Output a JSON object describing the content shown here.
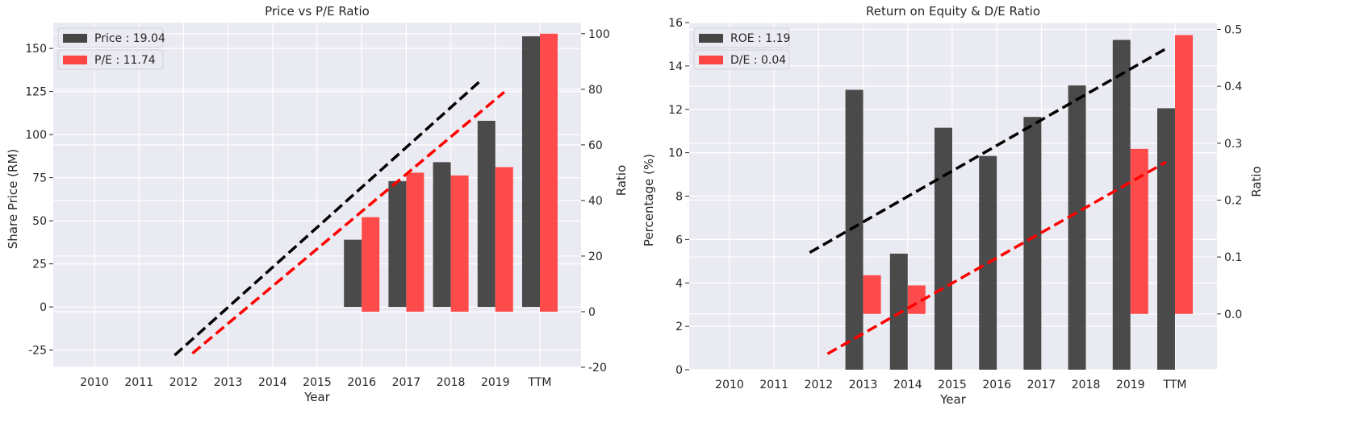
{
  "chart_data": [
    {
      "type": "bar",
      "title": "Price vs P/E Ratio",
      "xlabel": "Year",
      "ylabel": "Share Price (RM)",
      "ylabel_right": "Ratio",
      "categories": [
        "2010",
        "2011",
        "2012",
        "2013",
        "2014",
        "2015",
        "2016",
        "2017",
        "2018",
        "2019",
        "TTM"
      ],
      "ylim": [
        -35,
        165
      ],
      "yticks": [
        -25,
        0,
        25,
        50,
        75,
        100,
        125,
        150
      ],
      "ylim_right": [
        -20,
        104
      ],
      "yticks_right": [
        -20,
        0,
        20,
        40,
        60,
        80,
        100
      ],
      "legend_position": "top-left",
      "series": [
        {
          "name": "Price : 19.04",
          "axis": "left",
          "color": "#333333",
          "values": [
            null,
            null,
            null,
            null,
            null,
            null,
            39,
            73,
            84,
            108,
            157
          ]
        },
        {
          "name": "P/E : 11.74",
          "axis": "right",
          "color": "#ff3333",
          "values": [
            null,
            null,
            null,
            null,
            null,
            null,
            34,
            50,
            49,
            52,
            100
          ]
        }
      ],
      "trendlines": [
        {
          "axis": "left",
          "color": "#000000",
          "from": [
            1.8,
            -28
          ],
          "to": [
            8.7,
            132
          ]
        },
        {
          "axis": "right",
          "color": "#ff0000",
          "from": [
            2.2,
            -15
          ],
          "to": [
            9.2,
            79
          ]
        }
      ],
      "grid": true
    },
    {
      "type": "bar",
      "title": "Return on Equity & D/E Ratio",
      "xlabel": "Year",
      "ylabel": "Percentage (%)",
      "ylabel_right": "Ratio",
      "categories": [
        "2010",
        "2011",
        "2012",
        "2013",
        "2014",
        "2015",
        "2016",
        "2017",
        "2018",
        "2019",
        "TTM"
      ],
      "ylim": [
        0,
        16
      ],
      "yticks": [
        0,
        2,
        4,
        6,
        8,
        10,
        12,
        14,
        16
      ],
      "ylim_right": [
        -0.098,
        0.512
      ],
      "yticks_right": [
        0.0,
        0.1,
        0.2,
        0.3,
        0.4,
        0.5
      ],
      "legend_position": "top-left",
      "series": [
        {
          "name": "ROE : 1.19",
          "axis": "left",
          "color": "#333333",
          "values": [
            null,
            null,
            null,
            12.9,
            5.35,
            11.15,
            9.85,
            11.65,
            13.1,
            15.2,
            12.05
          ]
        },
        {
          "name": "D/E : 0.04",
          "axis": "right",
          "color": "#ff3333",
          "values": [
            null,
            null,
            null,
            0.068,
            0.05,
            null,
            null,
            null,
            null,
            0.29,
            0.49
          ]
        }
      ],
      "trendlines": [
        {
          "axis": "left",
          "color": "#000000",
          "from": [
            1.8,
            5.4
          ],
          "to": [
            9.8,
            14.8
          ]
        },
        {
          "axis": "right",
          "color": "#ff0000",
          "from": [
            2.2,
            -0.07
          ],
          "to": [
            9.8,
            0.267
          ]
        }
      ],
      "grid": true
    }
  ]
}
